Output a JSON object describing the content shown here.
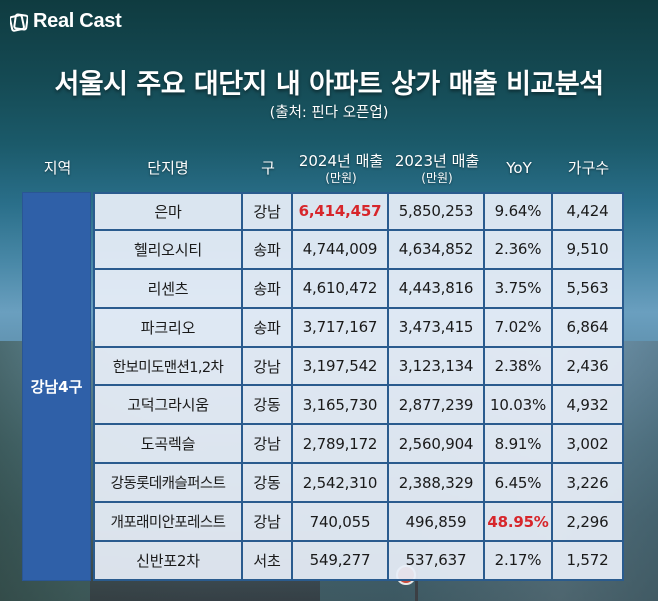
{
  "brand": {
    "name": "Real Cast"
  },
  "title": "서울시 주요 대단지 내 아파트 상가 매출 비교분석",
  "source": "(출처: 핀다 오픈업)",
  "table": {
    "headers": {
      "region": "지역",
      "complex": "단지명",
      "district": "구",
      "sales2024": "2024년 매출",
      "sales2024_unit": "(만원)",
      "sales2023": "2023년 매출",
      "sales2023_unit": "(만원)",
      "yoy": "YoY",
      "households": "가구수"
    },
    "region_label": "강남4구",
    "rows": [
      {
        "complex": "은마",
        "district": "강남",
        "sales2024": "6,414,457",
        "sales2023": "5,850,253",
        "yoy": "9.64%",
        "households": "4,424"
      },
      {
        "complex": "헬리오시티",
        "district": "송파",
        "sales2024": "4,744,009",
        "sales2023": "4,634,852",
        "yoy": "2.36%",
        "households": "9,510"
      },
      {
        "complex": "리센츠",
        "district": "송파",
        "sales2024": "4,610,472",
        "sales2023": "4,443,816",
        "yoy": "3.75%",
        "households": "5,563"
      },
      {
        "complex": "파크리오",
        "district": "송파",
        "sales2024": "3,717,167",
        "sales2023": "3,473,415",
        "yoy": "7.02%",
        "households": "6,864"
      },
      {
        "complex": "한보미도맨션1,2차",
        "district": "강남",
        "sales2024": "3,197,542",
        "sales2023": "3,123,134",
        "yoy": "2.38%",
        "households": "2,436"
      },
      {
        "complex": "고덕그라시움",
        "district": "강동",
        "sales2024": "3,165,730",
        "sales2023": "2,877,239",
        "yoy": "10.03%",
        "households": "4,932"
      },
      {
        "complex": "도곡렉슬",
        "district": "강남",
        "sales2024": "2,789,172",
        "sales2023": "2,560,904",
        "yoy": "8.91%",
        "households": "3,002"
      },
      {
        "complex": "강동롯데캐슬퍼스트",
        "district": "강동",
        "sales2024": "2,542,310",
        "sales2023": "2,388,329",
        "yoy": "6.45%",
        "households": "3,226"
      },
      {
        "complex": "개포래미안포레스트",
        "district": "강남",
        "sales2024": "740,055",
        "sales2023": "496,859",
        "yoy": "48.95%",
        "households": "2,296"
      },
      {
        "complex": "신반포2차",
        "district": "서초",
        "sales2024": "549,277",
        "sales2023": "537,637",
        "yoy": "2.17%",
        "households": "1,572"
      }
    ],
    "highlights": {
      "max_sales2024_row": 0,
      "max_yoy_row": 8
    },
    "colors": {
      "highlight": "#d7262b",
      "region_bg": "#2f60a8",
      "cell_bg": "#e7eef8",
      "grid_line": "#2a5b8e"
    }
  }
}
